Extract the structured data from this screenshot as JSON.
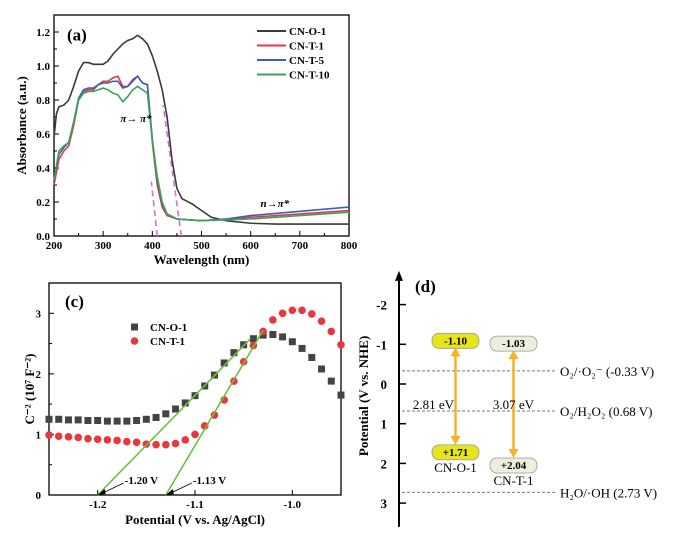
{
  "chart_data": [
    {
      "panel": "(a)",
      "type": "line",
      "xlabel": "Wavelength (nm)",
      "ylabel": "Absorbance (a.u.)",
      "xlim": [
        200,
        800
      ],
      "ylim": [
        0,
        1.3
      ],
      "xticks": [
        200,
        300,
        400,
        500,
        600,
        700,
        800
      ],
      "yticks": [
        "0.0",
        "0.2",
        "0.4",
        "0.6",
        "0.8",
        "1.0",
        "1.2"
      ],
      "legend": "top-right",
      "grid": false,
      "series": [
        {
          "name": "CN-O-1",
          "color": "#3a3a3a",
          "x": [
            200,
            205,
            210,
            220,
            230,
            240,
            250,
            260,
            270,
            280,
            290,
            300,
            310,
            320,
            330,
            340,
            350,
            360,
            370,
            380,
            390,
            400,
            410,
            420,
            430,
            440,
            450,
            460,
            480,
            500,
            520,
            550,
            600,
            650,
            700,
            800
          ],
          "y": [
            0.58,
            0.72,
            0.76,
            0.77,
            0.8,
            0.88,
            0.97,
            1.02,
            1.02,
            1.01,
            1.01,
            1.01,
            1.03,
            1.07,
            1.1,
            1.13,
            1.15,
            1.16,
            1.18,
            1.16,
            1.13,
            1.06,
            0.97,
            0.86,
            0.7,
            0.45,
            0.28,
            0.22,
            0.19,
            0.15,
            0.11,
            0.09,
            0.075,
            0.07,
            0.07,
            0.07
          ]
        },
        {
          "name": "CN-T-1",
          "color": "#e8383d",
          "x": [
            200,
            210,
            220,
            230,
            240,
            250,
            260,
            270,
            280,
            290,
            300,
            310,
            320,
            330,
            340,
            350,
            360,
            370,
            380,
            390,
            400,
            410,
            420,
            430,
            450,
            500,
            550,
            600,
            700,
            800
          ],
          "y": [
            0.3,
            0.45,
            0.5,
            0.53,
            0.65,
            0.8,
            0.85,
            0.86,
            0.86,
            0.89,
            0.91,
            0.91,
            0.93,
            0.94,
            0.88,
            0.88,
            0.92,
            0.94,
            0.9,
            0.89,
            0.55,
            0.3,
            0.17,
            0.12,
            0.1,
            0.09,
            0.1,
            0.11,
            0.13,
            0.15
          ]
        },
        {
          "name": "CN-T-5",
          "color": "#3a5fbf",
          "x": [
            200,
            210,
            220,
            230,
            240,
            250,
            260,
            270,
            280,
            290,
            300,
            310,
            320,
            330,
            340,
            350,
            360,
            370,
            380,
            390,
            400,
            410,
            420,
            430,
            450,
            500,
            550,
            600,
            700,
            800
          ],
          "y": [
            0.32,
            0.48,
            0.52,
            0.55,
            0.67,
            0.81,
            0.86,
            0.87,
            0.87,
            0.89,
            0.9,
            0.9,
            0.91,
            0.91,
            0.87,
            0.88,
            0.91,
            0.94,
            0.9,
            0.89,
            0.57,
            0.33,
            0.19,
            0.13,
            0.1,
            0.09,
            0.1,
            0.12,
            0.145,
            0.17
          ]
        },
        {
          "name": "CN-T-10",
          "color": "#3aa35a",
          "x": [
            200,
            210,
            220,
            230,
            240,
            250,
            260,
            270,
            280,
            290,
            300,
            310,
            320,
            330,
            340,
            350,
            360,
            370,
            380,
            390,
            400,
            410,
            420,
            430,
            450,
            500,
            550,
            600,
            700,
            800
          ],
          "y": [
            0.33,
            0.5,
            0.53,
            0.55,
            0.67,
            0.8,
            0.84,
            0.85,
            0.85,
            0.86,
            0.87,
            0.86,
            0.84,
            0.83,
            0.79,
            0.82,
            0.86,
            0.88,
            0.86,
            0.84,
            0.56,
            0.35,
            0.2,
            0.13,
            0.1,
            0.09,
            0.095,
            0.1,
            0.12,
            0.14
          ]
        }
      ],
      "tangents": [
        {
          "x": [
            459,
            422
          ],
          "y": [
            0,
            0.77
          ],
          "color": "#cc77cc"
        },
        {
          "x": [
            410,
            398
          ],
          "y": [
            0,
            0.32
          ],
          "color": "#cc77cc"
        }
      ],
      "annotations": [
        {
          "text": "π→ π*",
          "x": 335,
          "y": 0.67
        },
        {
          "text": "n→π*",
          "x": 620,
          "y": 0.17
        }
      ]
    },
    {
      "panel": "(c)",
      "type": "scatter",
      "xlabel": "Potential (V vs. Ag/AgCl)",
      "ylabel": "C⁻² (10⁷ F⁻²)",
      "xlim": [
        -1.25,
        -0.95
      ],
      "ylim": [
        0,
        3.5
      ],
      "xticks": [
        "-1.2",
        "-1.1",
        "-1.0"
      ],
      "yticks": [
        "0",
        "1",
        "2",
        "3"
      ],
      "legend": "top-left",
      "grid": false,
      "x": [
        -1.25,
        -1.24,
        -1.23,
        -1.22,
        -1.21,
        -1.2,
        -1.19,
        -1.18,
        -1.17,
        -1.16,
        -1.15,
        -1.14,
        -1.13,
        -1.12,
        -1.11,
        -1.1,
        -1.09,
        -1.08,
        -1.07,
        -1.06,
        -1.05,
        -1.04,
        -1.03,
        -1.02,
        -1.01,
        -1.0,
        -0.99,
        -0.98,
        -0.97,
        -0.96,
        -0.95
      ],
      "series": [
        {
          "name": "CN-O-1",
          "marker": "square",
          "color": "#444444",
          "values": [
            1.25,
            1.25,
            1.24,
            1.24,
            1.23,
            1.23,
            1.22,
            1.22,
            1.22,
            1.23,
            1.25,
            1.28,
            1.34,
            1.42,
            1.52,
            1.64,
            1.8,
            1.98,
            2.18,
            2.35,
            2.48,
            2.58,
            2.64,
            2.65,
            2.61,
            2.53,
            2.42,
            2.27,
            2.08,
            1.88,
            1.65
          ]
        },
        {
          "name": "CN-T-1",
          "marker": "circle",
          "color": "#e8383d",
          "values": [
            0.99,
            0.97,
            0.96,
            0.95,
            0.93,
            0.92,
            0.91,
            0.9,
            0.88,
            0.87,
            0.84,
            0.83,
            0.83,
            0.85,
            0.91,
            1.0,
            1.14,
            1.32,
            1.57,
            1.88,
            2.2,
            2.47,
            2.7,
            2.89,
            3.0,
            3.05,
            3.05,
            2.99,
            2.87,
            2.7,
            2.48
          ]
        }
      ],
      "fit_lines": [
        {
          "x": [
            -1.2,
            -1.043
          ],
          "y": [
            0,
            2.58
          ],
          "label": "-1.20 V",
          "color": "#6cbf3f"
        },
        {
          "x": [
            -1.13,
            -1.03
          ],
          "y": [
            0,
            2.72
          ],
          "label": "-1.13 V",
          "color": "#6cbf3f"
        }
      ]
    },
    {
      "panel": "(d)",
      "type": "band-diagram",
      "ylabel": "Potential (V vs. NHE)",
      "ylim": [
        -2.8,
        3.6
      ],
      "yticks": [
        -2,
        -1,
        0,
        1,
        2,
        3
      ],
      "samples": [
        {
          "name": "CN-O-1",
          "cb": -1.1,
          "vb": 1.71,
          "cb_label": "-1.10",
          "vb_label": "+1.71",
          "gap_label": "2.81 eV",
          "color": "#e6e41c"
        },
        {
          "name": "CN-T-1",
          "cb": -1.03,
          "vb": 2.04,
          "cb_label": "-1.03",
          "vb_label": "+2.04",
          "gap_label": "3.07 eV",
          "color": "#eeeedd"
        }
      ],
      "redox": [
        {
          "value": -0.33,
          "label": "O₂/·O₂⁻ (-0.33 V)"
        },
        {
          "value": 0.68,
          "label": "O₂/H₂O₂ (0.68 V)"
        },
        {
          "value": 2.73,
          "label": "H₂O/·OH (2.73 V)"
        }
      ],
      "arrow_color": "#f5b324"
    }
  ]
}
